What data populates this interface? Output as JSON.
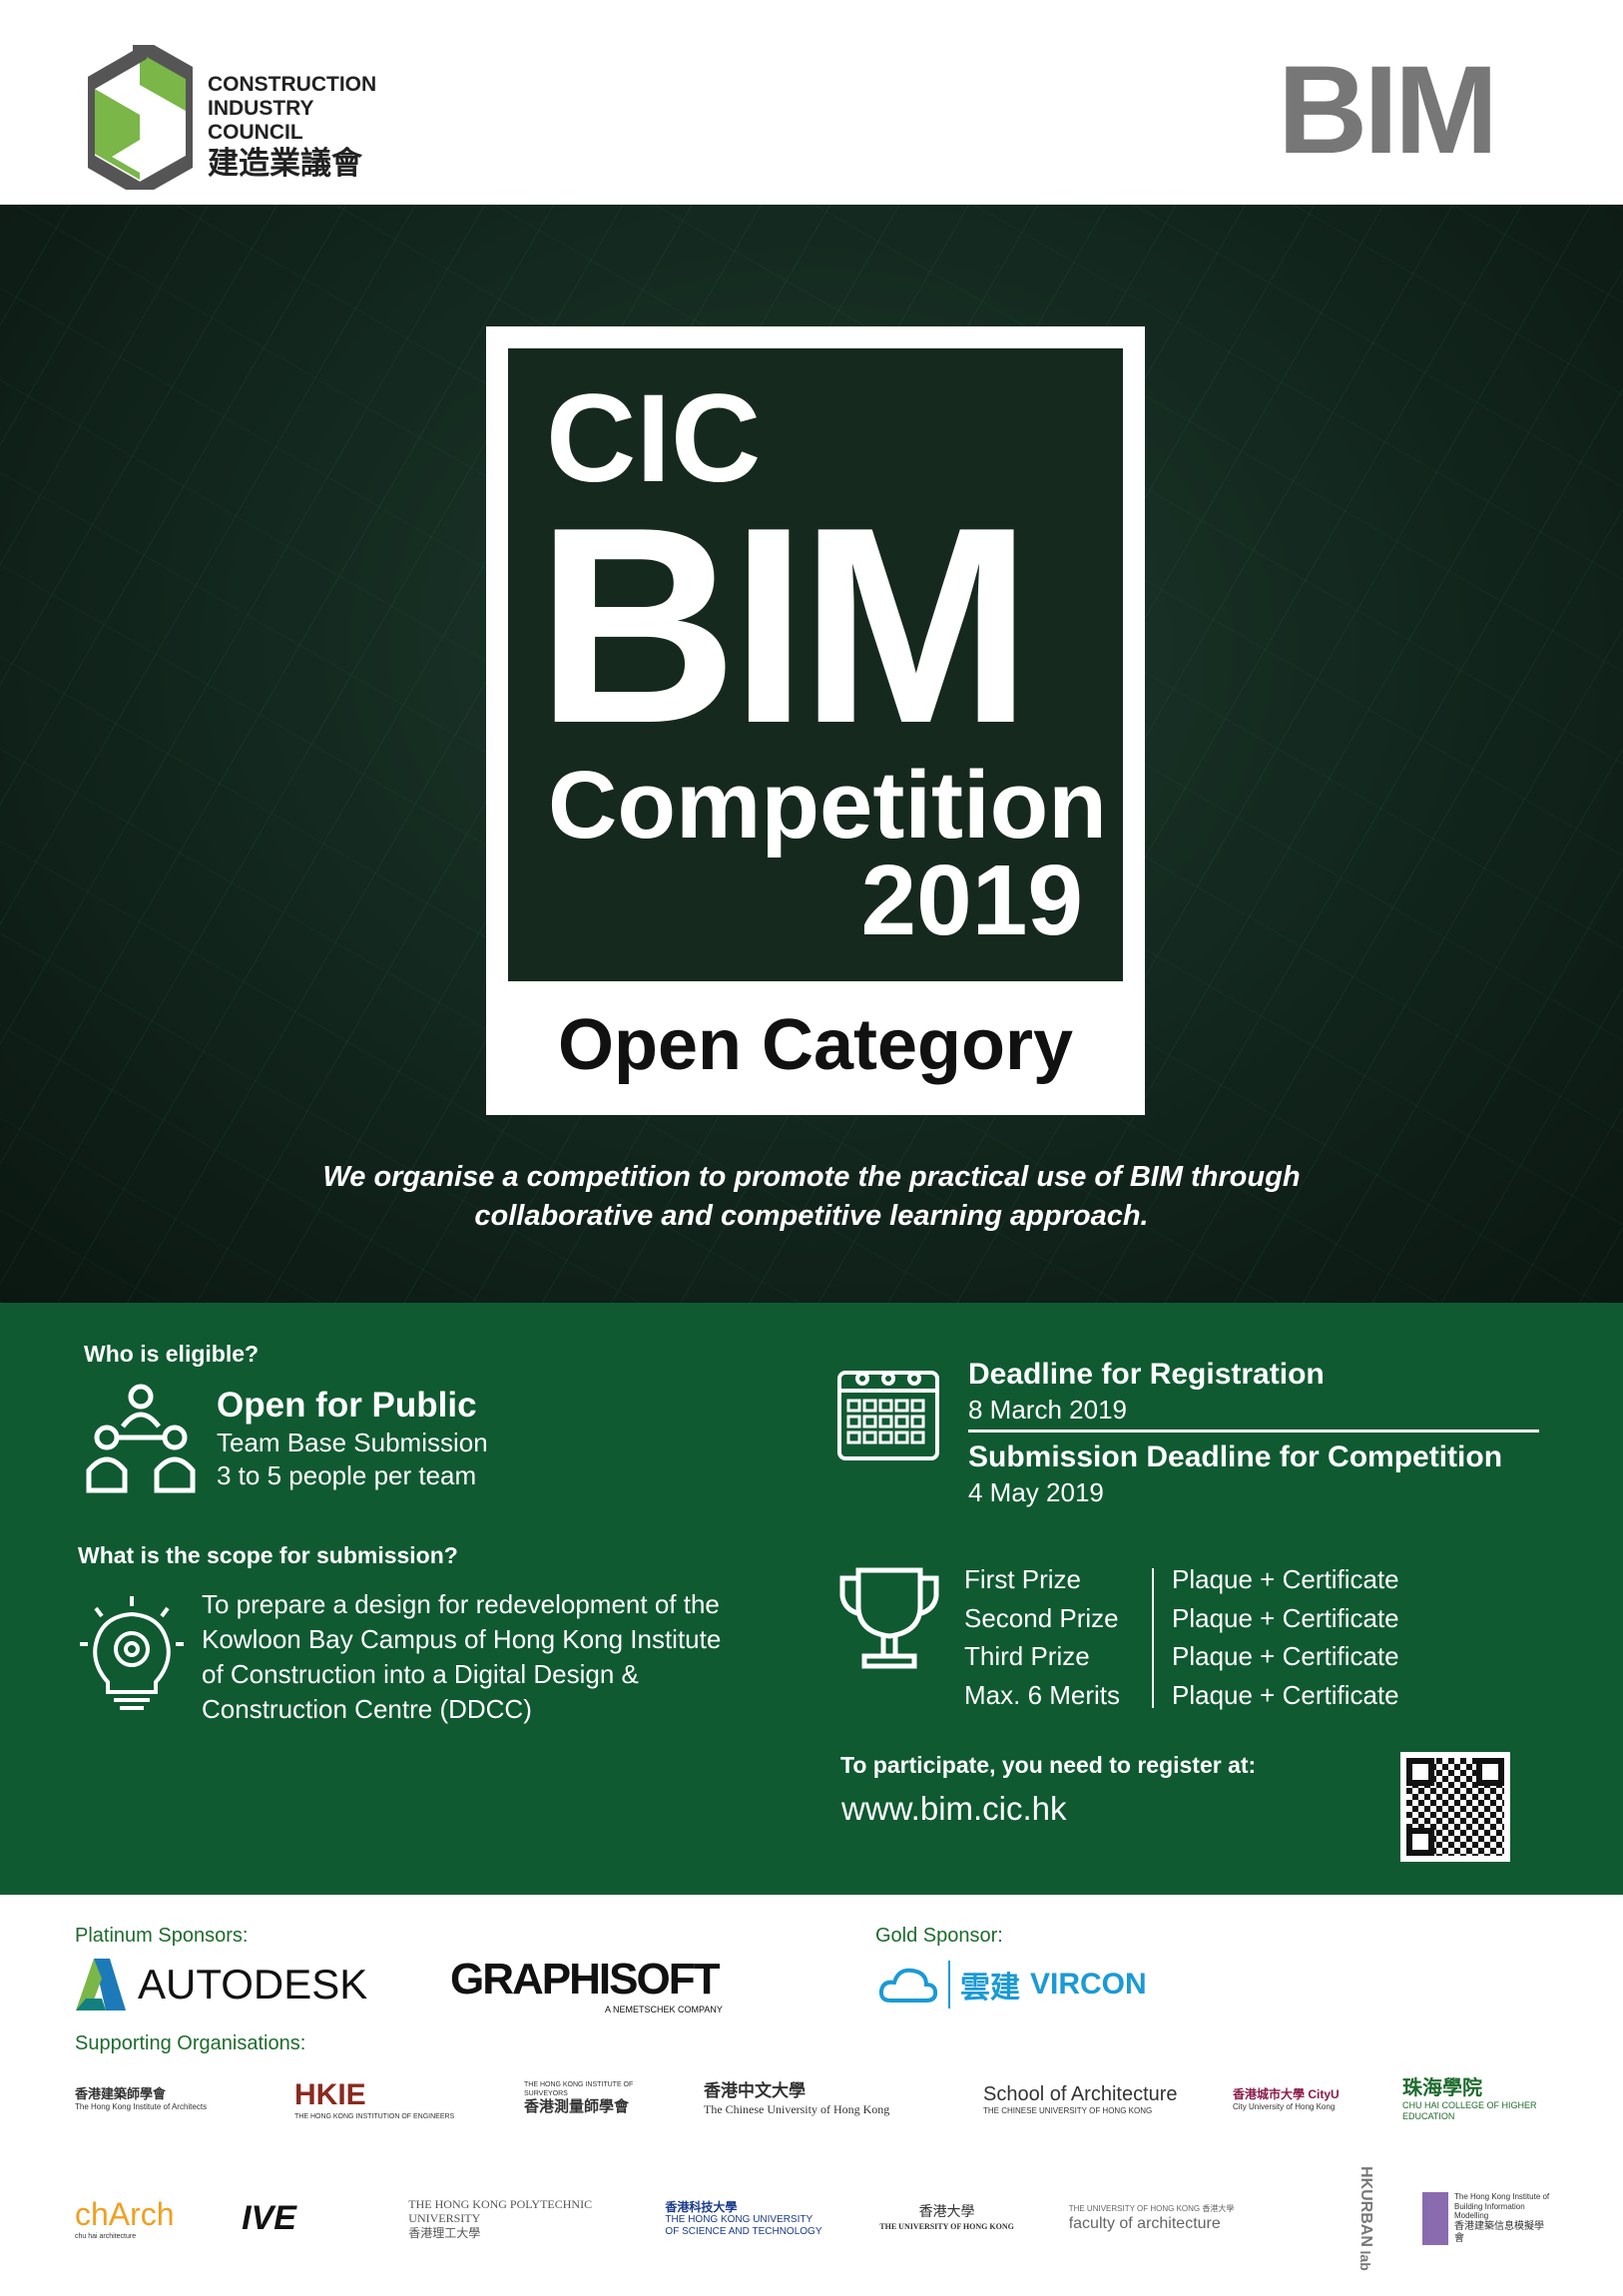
{
  "header": {
    "cic_logo": {
      "line1": "CONSTRUCTION",
      "line2": "INDUSTRY COUNCIL",
      "line3": "建造業議會"
    },
    "bim_logo": "BIM"
  },
  "hero": {
    "cic": "CIC",
    "bim": "BIM",
    "competition": "Competition",
    "year": "2019",
    "category": "Open Category",
    "tagline1": "We organise a competition to promote the practical use of BIM through",
    "tagline2": "collaborative and competitive learning approach."
  },
  "info": {
    "eligible_heading": "Who is eligible?",
    "eligible_title": "Open for Public",
    "eligible_line1": "Team Base Submission",
    "eligible_line2": "3 to 5 people per team",
    "scope_heading": "What is the scope for submission?",
    "scope_lines": [
      "To prepare a design for redevelopment of the",
      "Kowloon Bay Campus of Hong Kong Institute",
      "of Construction into a Digital Design &",
      "Construction Centre (DDCC)"
    ],
    "reg_title": "Deadline for Registration",
    "reg_date": "8 March 2019",
    "sub_title": "Submission Deadline for Competition",
    "sub_date": "4 May 2019",
    "prizes": [
      {
        "name": "First Prize",
        "award": "Plaque + Certificate"
      },
      {
        "name": "Second Prize",
        "award": "Plaque + Certificate"
      },
      {
        "name": "Third Prize",
        "award": "Plaque + Certificate"
      },
      {
        "name": "Max. 6 Merits",
        "award": "Plaque + Certificate"
      }
    ],
    "register_text": "To participate, you need to register at:",
    "url": "www.bim.cic.hk",
    "icons": [
      "people-icon",
      "lightbulb-gear-icon",
      "calendar-icon",
      "trophy-icon",
      "qr-code-icon"
    ]
  },
  "sponsors": {
    "platinum_label": "Platinum Sponsors:",
    "autodesk": "AUTODESK",
    "graphisoft": "GRAPHISOFT",
    "graphisoft_sub": "A NEMETSCHEK COMPANY",
    "gold_label": "Gold Sponsor:",
    "vircon_cn": "雲建",
    "vircon": "VIRCON",
    "supporting_label": "Supporting Organisations:",
    "row1": [
      {
        "cn": "香港建築師學會",
        "en": "The Hong Kong Institute of Architects"
      },
      {
        "cn": "HKIE",
        "en": "THE HONG KONG INSTITUTION OF ENGINEERS"
      },
      {
        "cn": "香港測量師學會",
        "en": "THE HONG KONG INSTITUTE OF SURVEYORS"
      },
      {
        "cn": "香港中文大學",
        "en": "The Chinese University of Hong Kong"
      },
      {
        "cn": "School of Architecture",
        "en": "THE CHINESE UNIVERSITY OF HONG KONG"
      },
      {
        "cn": "香港城市大學 CityU",
        "en": "City University of Hong Kong"
      },
      {
        "cn": "珠海學院",
        "en": "CHU HAI COLLEGE OF HIGHER EDUCATION"
      }
    ],
    "row2": [
      {
        "cn": "chArch",
        "en": "chu hai architecture"
      },
      {
        "cn": "IVE",
        "en": ""
      },
      {
        "cn": "THE HONG KONG POLYTECHNIC UNIVERSITY",
        "en": "香港理工大學"
      },
      {
        "cn": "香港科技大學",
        "en": "THE HONG KONG UNIVERSITY OF SCIENCE AND TECHNOLOGY"
      },
      {
        "cn": "香港大學",
        "en": "THE UNIVERSITY OF HONG KONG"
      },
      {
        "cn": "faculty of architecture",
        "en": "THE UNIVERSITY OF HONG KONG 香港大學"
      },
      {
        "cn": "HKURBAN",
        "en": "lab"
      },
      {
        "cn": "The Hong Kong Institute of Building Information Modelling",
        "en": "香港建築信息模擬學會"
      }
    ]
  },
  "colors": {
    "green": "#0f5a31",
    "accent_green": "#7ab648",
    "dark": "#12261d",
    "label_green": "#1f6b2e"
  }
}
